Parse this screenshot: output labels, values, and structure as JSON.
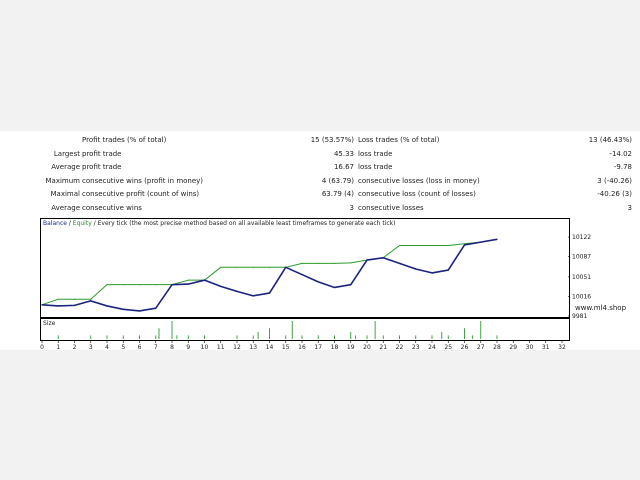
{
  "stats": [
    {
      "label": "",
      "name1": "Profit trades (% of total)",
      "value1": "15 (53.57%)",
      "name2": "Loss trades (% of total)",
      "value2": "13 (46.43%)"
    },
    {
      "label": "Largest",
      "name1": "profit trade",
      "value1": "45.33",
      "name2": "loss trade",
      "value2": "-14.02"
    },
    {
      "label": "Average",
      "name1": "profit trade",
      "value1": "16.67",
      "name2": "loss trade",
      "value2": "-9.78"
    },
    {
      "label": "Maximum",
      "name1": "consecutive wins (profit in money)",
      "value1": "4 (63.79)",
      "name2": "consecutive losses (loss in money)",
      "value2": "3 (-40.26)"
    },
    {
      "label": "Maximal",
      "name1": "consecutive profit (count of wins)",
      "value1": "63.79 (4)",
      "name2": "consecutive loss (count of losses)",
      "value2": "-40.26 (3)"
    },
    {
      "label": "Average",
      "name1": "consecutive wins",
      "value1": "3",
      "name2": "consecutive losses",
      "value2": "3"
    }
  ],
  "legend": {
    "balance": "Balance",
    "sep": " / ",
    "equity": "Equity",
    "tail": " / Every tick (the most precise method based on all available least timeframes to generate each tick)"
  },
  "size_label": "Size",
  "watermark": "www.ml4.shop",
  "colors": {
    "balance": "#1a237e",
    "equity": "#2e9a2e"
  },
  "chart_data": {
    "type": "line",
    "ylim": [
      9981,
      10140
    ],
    "yticks": [
      "9981",
      "10016",
      "10051",
      "10087",
      "10122"
    ],
    "ytick_values": [
      9981,
      10016,
      10051,
      "10087",
      10122
    ],
    "xticks": [
      "0",
      "1",
      "2",
      "3",
      "4",
      "5",
      "6",
      "7",
      "8",
      "9",
      "10",
      "11",
      "12",
      "13",
      "14",
      "15",
      "16",
      "17",
      "18",
      "19",
      "20",
      "21",
      "22",
      "23",
      "24",
      "25",
      "26",
      "27",
      "28",
      "29",
      "30",
      "31",
      "32"
    ],
    "xlim": [
      0,
      32
    ],
    "series": [
      {
        "name": "Balance",
        "x": [
          0,
          1,
          2,
          3,
          4,
          5,
          6,
          7,
          8,
          9,
          10,
          11,
          12,
          13,
          14,
          15,
          16,
          17,
          18,
          19,
          20,
          21,
          22,
          23,
          24,
          25,
          26,
          27,
          28
        ],
        "y": [
          10001,
          9999,
          10000,
          10008,
          9999,
          9993,
          9990,
          9995,
          10037,
          10038,
          10045,
          10034,
          10025,
          10017,
          10022,
          10068,
          10055,
          10042,
          10032,
          10037,
          10081,
          10085,
          10075,
          10065,
          10058,
          10063,
          10108,
          10113,
          10118
        ]
      },
      {
        "name": "Equity",
        "x": [
          0,
          1,
          2,
          3,
          4,
          5,
          6,
          7,
          8,
          9,
          10,
          11,
          12,
          13,
          14,
          15,
          16,
          17,
          18,
          19,
          20,
          21,
          22,
          23,
          24,
          25,
          26,
          27,
          28
        ],
        "y": [
          10001,
          10011,
          10011,
          10011,
          10037,
          10037,
          10037,
          10037,
          10037,
          10045,
          10045,
          10068,
          10068,
          10068,
          10068,
          10068,
          10075,
          10075,
          10075,
          10076,
          10081,
          10085,
          10107,
          10107,
          10107,
          10107,
          10110,
          10113,
          10118
        ]
      }
    ],
    "size_bars": {
      "x": [
        1,
        3,
        4,
        5,
        6,
        7,
        7.2,
        8,
        8.3,
        9,
        10,
        12,
        13,
        13.3,
        14,
        15,
        15.4,
        16,
        17,
        18,
        19,
        19.3,
        20,
        20.5,
        21,
        22,
        23,
        24,
        24.6,
        25,
        26,
        26.5,
        27,
        28
      ],
      "v": [
        1,
        1,
        1,
        1,
        1,
        1,
        3,
        5,
        1,
        1,
        1,
        1,
        1,
        2,
        3,
        1,
        5,
        1,
        1,
        1,
        2,
        1,
        1,
        5,
        1,
        1,
        1,
        1,
        2,
        1,
        3,
        1,
        5,
        1
      ]
    }
  }
}
